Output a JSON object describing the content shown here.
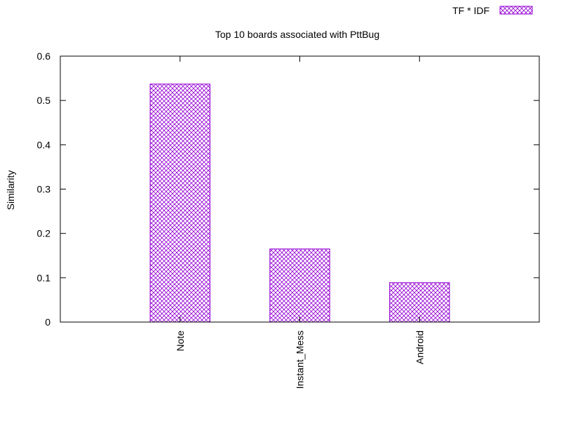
{
  "chart_data": {
    "type": "bar",
    "title": "Top 10 boards associated with PttBug",
    "xlabel": "",
    "ylabel": "Similarity",
    "categories": [
      "Note",
      "Instant_Mess",
      "Android"
    ],
    "series": [
      {
        "name": "TF * IDF",
        "values": [
          0.537,
          0.165,
          0.089
        ]
      }
    ],
    "ylim": [
      0,
      0.6
    ],
    "yticks": [
      "0",
      "0.1",
      "0.2",
      "0.3",
      "0.4",
      "0.5",
      "0.6"
    ],
    "grid": false,
    "legend_position": "top-right",
    "bar_color": "#9400d3",
    "bar_pattern": "crosshatch"
  }
}
